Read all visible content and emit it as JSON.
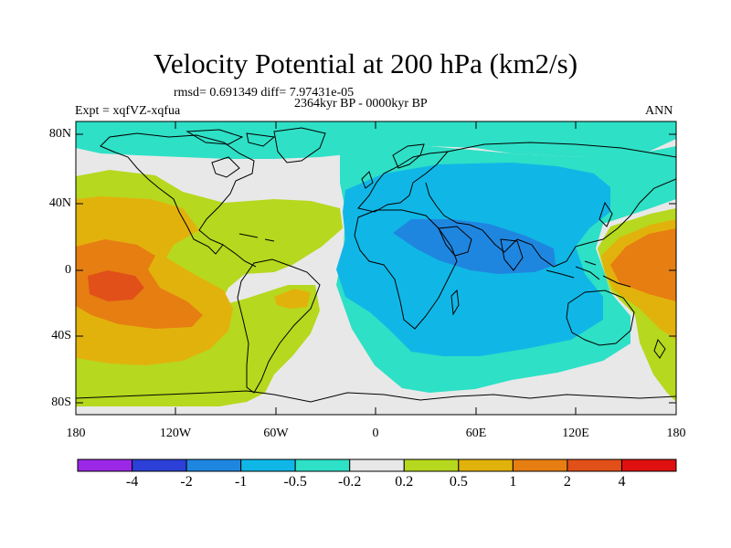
{
  "title": "Velocity Potential at 200 hPa (km2/s)",
  "stats": "rmsd= 0.691349 diff= 7.97431e-05",
  "experiment": "Expt = xqfVZ-xqfua",
  "period": "2364kyr BP - 0000kyr BP",
  "season": "ANN",
  "lat_ticks": [
    "80N",
    "40N",
    "0",
    "40S",
    "80S"
  ],
  "lon_ticks": [
    "180",
    "120W",
    "60W",
    "0",
    "60E",
    "120E",
    "180"
  ],
  "colorbar": {
    "labels": [
      "-4",
      "-2",
      "-1",
      "-0.5",
      "-0.2",
      "0.2",
      "0.5",
      "1",
      "2",
      "4"
    ],
    "colors": [
      "#9a28e6",
      "#2c3fd6",
      "#1f86e0",
      "#10b7e6",
      "#2ee0c6",
      "#e8e8e8",
      "#b6d81e",
      "#e2b20c",
      "#e67e12",
      "#e2501a",
      "#e01010"
    ]
  }
}
